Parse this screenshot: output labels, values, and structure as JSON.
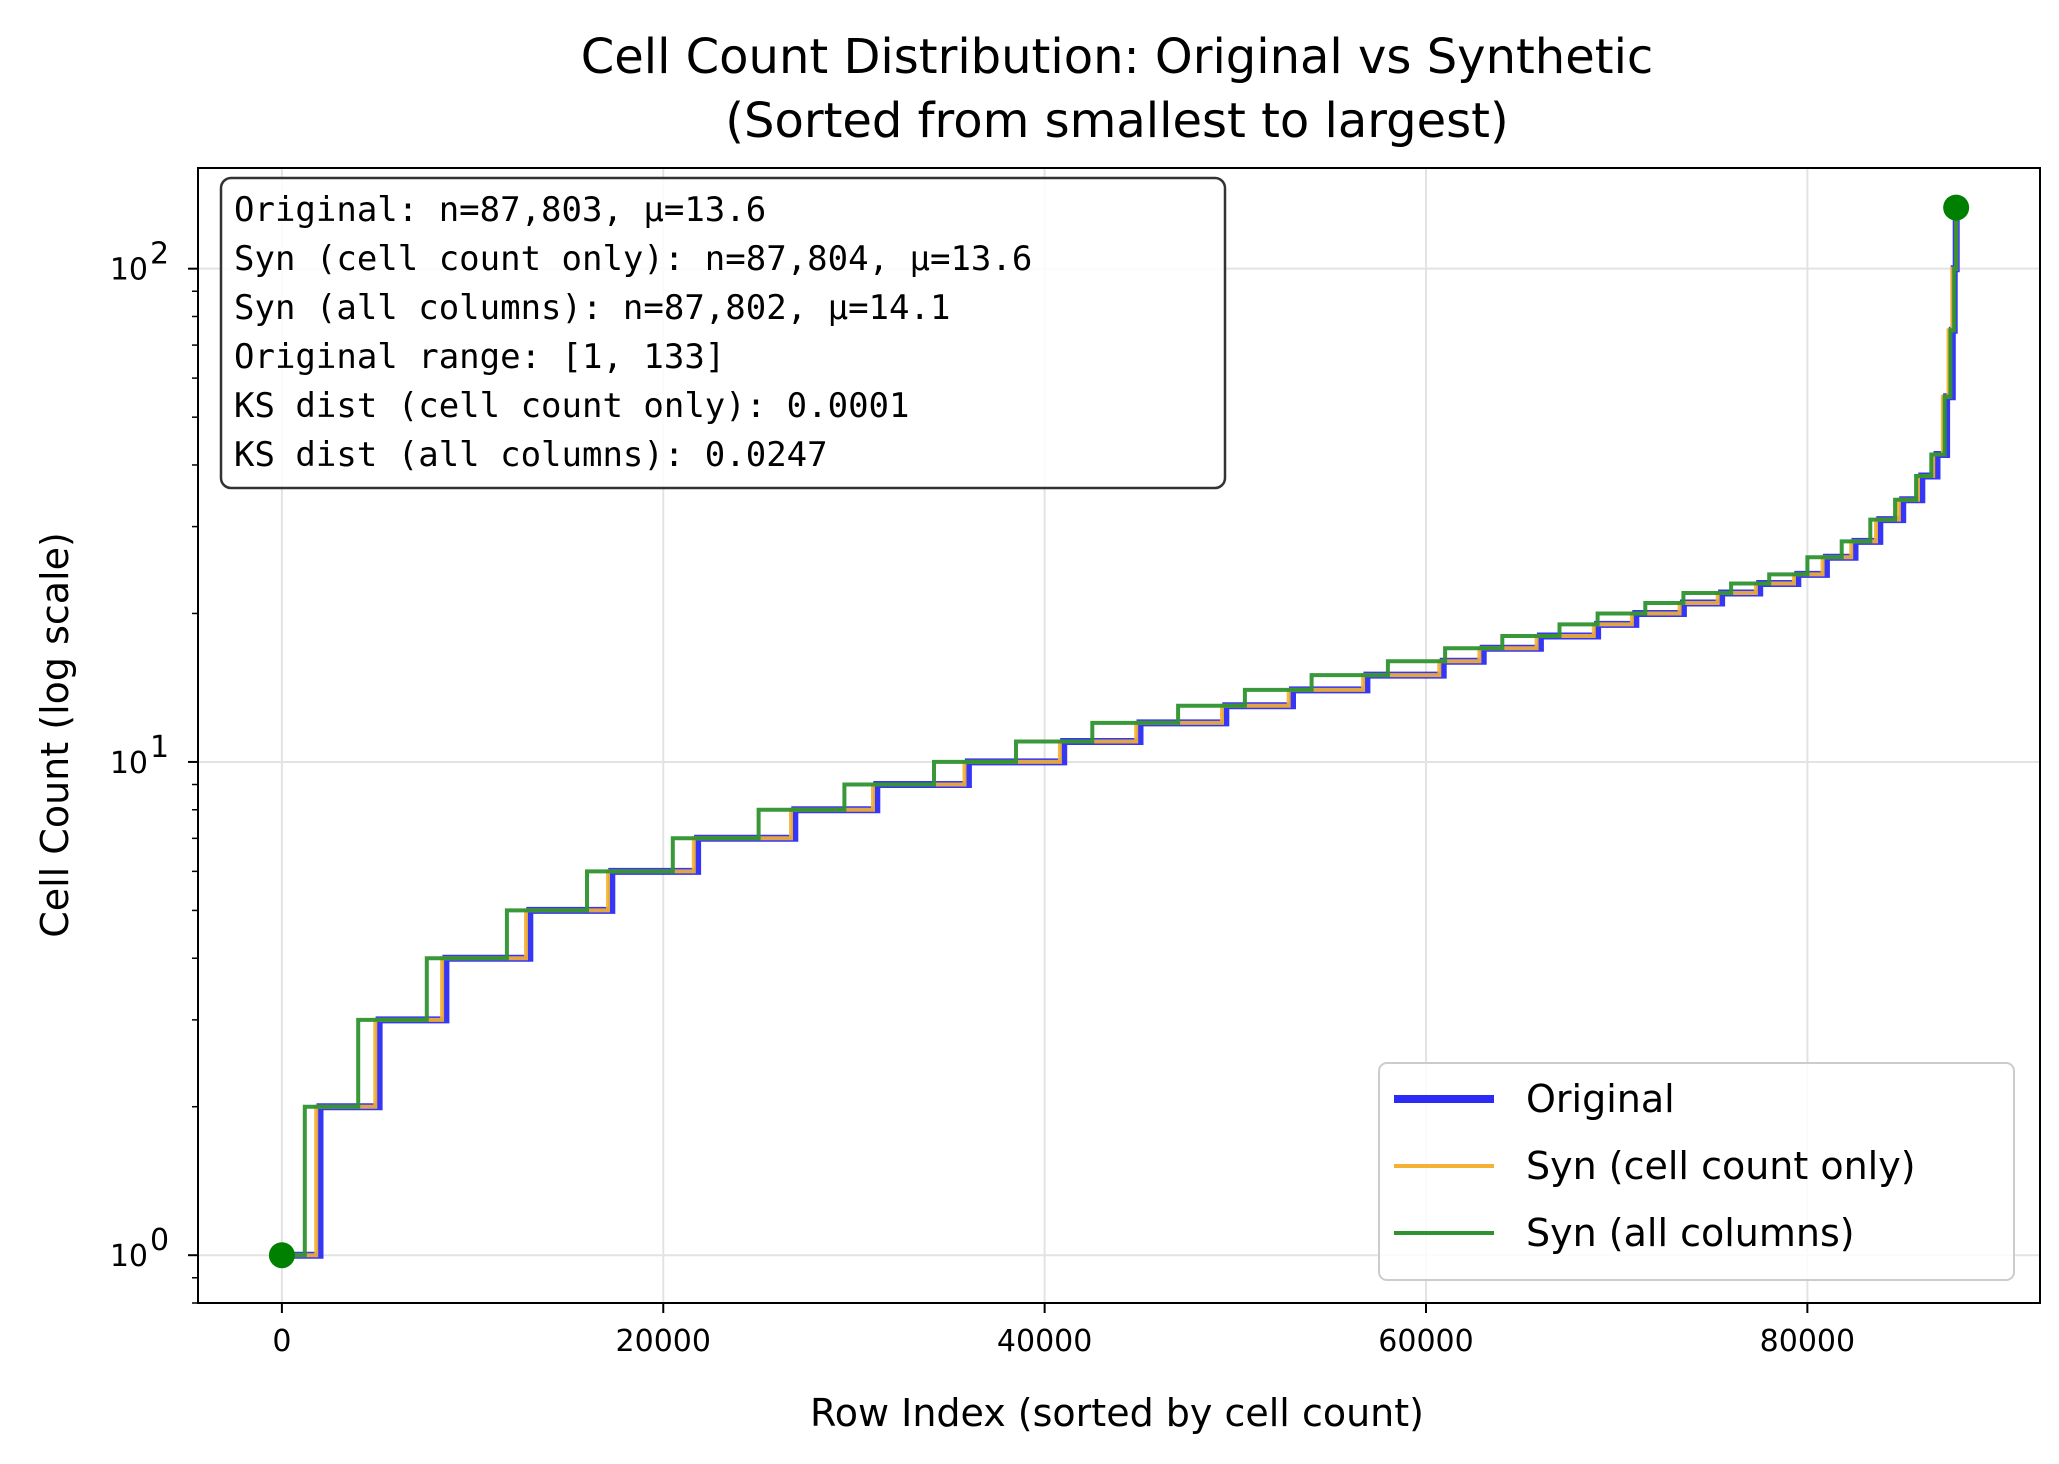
{
  "chart_data": {
    "type": "line",
    "title": [
      "Cell Count Distribution: Original vs Synthetic",
      "(Sorted from smallest to largest)"
    ],
    "xlabel": "Row Index (sorted by cell count)",
    "ylabel": "Cell Count (log scale)",
    "xlim": [
      -4400,
      92200
    ],
    "ylim": [
      0.8,
      160
    ],
    "yscale": "log",
    "grid": true,
    "legend_position": "bottom-right",
    "x_ticks": [
      {
        "value": 0,
        "label": "0"
      },
      {
        "value": 20000,
        "label": "20000"
      },
      {
        "value": 40000,
        "label": "40000"
      },
      {
        "value": 60000,
        "label": "60000"
      },
      {
        "value": 80000,
        "label": "80000"
      }
    ],
    "y_ticks": [
      {
        "value": 1,
        "base": "10",
        "exp": "0"
      },
      {
        "value": 10,
        "base": "10",
        "exp": "1"
      },
      {
        "value": 100,
        "base": "10",
        "exp": "2"
      }
    ],
    "info_box": [
      "Original: n=87,803, μ=13.6",
      "Syn (cell count only): n=87,804, μ=13.6",
      "Syn (all columns): n=87,802, μ=14.1",
      "Original range: [1, 133]",
      "KS dist (cell count only): 0.0001",
      "KS dist (all columns): 0.0247"
    ],
    "series": [
      {
        "name": "Original",
        "color": "#2b2bf5",
        "x": [
          0,
          2000,
          5100,
          8600,
          13000,
          17300,
          21800,
          26900,
          31200,
          36000,
          41000,
          45000,
          49500,
          53000,
          56900,
          60900,
          63000,
          66000,
          69000,
          71000,
          73500,
          75500,
          77500,
          79500,
          81000,
          82500,
          83800,
          85000,
          86000,
          86800,
          87300,
          87600,
          87700,
          87803
        ],
        "y": [
          1,
          2,
          3,
          4,
          5,
          6,
          7,
          8,
          9,
          10,
          11,
          12,
          13,
          14,
          15,
          16,
          17,
          18,
          19,
          20,
          21,
          22,
          23,
          24,
          26,
          28,
          31,
          34,
          38,
          42,
          55,
          75,
          100,
          133
        ]
      },
      {
        "name": "Syn (cell count only)",
        "color": "#f5b131",
        "x": [
          0,
          1800,
          4900,
          8400,
          12800,
          17100,
          21600,
          26700,
          31000,
          35800,
          40800,
          44800,
          49300,
          52800,
          56700,
          60700,
          62800,
          65800,
          68800,
          70800,
          73300,
          75300,
          77300,
          79300,
          80800,
          82300,
          83600,
          84800,
          85800,
          86600,
          87100,
          87400,
          87600,
          87804
        ],
        "y": [
          1,
          2,
          3,
          4,
          5,
          6,
          7,
          8,
          9,
          10,
          11,
          12,
          13,
          14,
          15,
          16,
          17,
          18,
          19,
          20,
          21,
          22,
          23,
          24,
          26,
          28,
          31,
          34,
          38,
          42,
          55,
          75,
          100,
          133
        ]
      },
      {
        "name": "Syn (all columns)",
        "color": "#2e922e",
        "x": [
          0,
          1200,
          4000,
          7600,
          11800,
          16000,
          20500,
          25000,
          29500,
          34200,
          38500,
          42500,
          47000,
          50500,
          54000,
          58000,
          61000,
          64000,
          67000,
          69000,
          71500,
          73500,
          76000,
          78000,
          80000,
          81800,
          83300,
          84600,
          85700,
          86500,
          87200,
          87500,
          87700,
          87802
        ],
        "y": [
          1,
          2,
          3,
          4,
          5,
          6,
          7,
          8,
          9,
          10,
          11,
          12,
          13,
          14,
          15,
          16,
          17,
          18,
          19,
          20,
          21,
          22,
          23,
          24,
          26,
          28,
          31,
          34,
          38,
          42,
          55,
          75,
          100,
          133
        ]
      }
    ],
    "markers": [
      {
        "x": 0,
        "y": 1,
        "color": "#008000"
      },
      {
        "x": 87803,
        "y": 133,
        "color": "#008000"
      }
    ]
  }
}
